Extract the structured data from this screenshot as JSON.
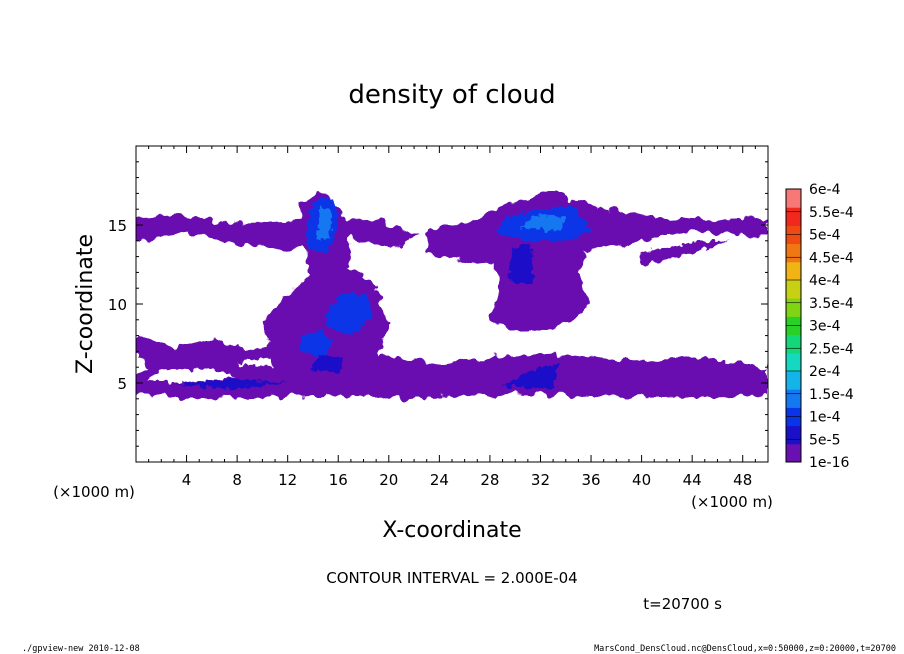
{
  "chart_data": {
    "type": "heatmap",
    "title": "density of cloud",
    "xlabel": "X-coordinate",
    "ylabel": "Z-coordinate",
    "x_unit_left": "(×1000 m)",
    "x_unit_right": "(×1000 m)",
    "xlim": [
      0,
      50
    ],
    "ylim": [
      0,
      20
    ],
    "x_ticks": [
      4,
      8,
      12,
      16,
      20,
      24,
      28,
      32,
      36,
      40,
      44,
      48
    ],
    "y_ticks": [
      5,
      10,
      15
    ],
    "contour_note": "CONTOUR INTERVAL = 2.000E-04",
    "time_label": "t=20700 s",
    "footer_left": "./gpview-new  2010-12-08",
    "footer_right": "MarsCond_DensCloud.nc@DensCloud,x=0:50000,z=0:20000,t=20700",
    "colorbar": {
      "levels": [
        "1e-16",
        "5e-5",
        "1e-4",
        "1.5e-4",
        "2e-4",
        "2.5e-4",
        "3e-4",
        "3.5e-4",
        "4e-4",
        "4.5e-4",
        "5e-4",
        "5.5e-4",
        "6e-4"
      ],
      "colors": [
        "#6a10b0",
        "#1a10c8",
        "#0a34e8",
        "#1478f0",
        "#14b4e8",
        "#14d8c0",
        "#14d878",
        "#28d028",
        "#80d414",
        "#c8d014",
        "#f0b414",
        "#f07814",
        "#f04a14",
        "#f0281e",
        "#f87878"
      ]
    },
    "regions": [
      {
        "name": "upper band",
        "z_range": [
          13,
          16.5
        ],
        "value_range": [
          "1e-16",
          "5e-5"
        ]
      },
      {
        "name": "lower band",
        "z_range": [
          4,
          8
        ],
        "value_range": [
          "1e-16",
          "5e-5"
        ]
      },
      {
        "name": "tower x≈12–18",
        "x_range": [
          12,
          18
        ],
        "z_range": [
          5,
          17
        ],
        "value_range": [
          "5e-5",
          "1.5e-4"
        ]
      },
      {
        "name": "tower x≈28–36",
        "x_range": [
          28,
          36
        ],
        "z_range": [
          9,
          17
        ],
        "value_range": [
          "5e-5",
          "1.5e-4"
        ]
      }
    ]
  }
}
